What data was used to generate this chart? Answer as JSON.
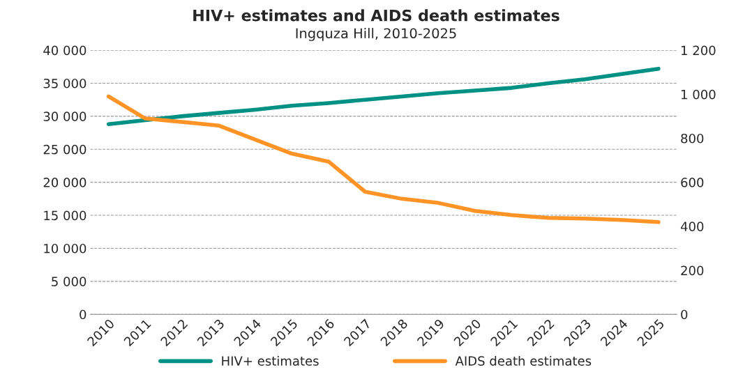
{
  "chart_data": {
    "type": "line",
    "title": "HIV+ estimates and AIDS death estimates",
    "subtitle": "Ingquza Hill, 2010-2025",
    "categories": [
      "2010",
      "2011",
      "2012",
      "2013",
      "2014",
      "2015",
      "2016",
      "2017",
      "2018",
      "2019",
      "2020",
      "2021",
      "2022",
      "2023",
      "2024",
      "2025"
    ],
    "series": [
      {
        "name": "HIV+ estimates",
        "color": "#009185",
        "values": [
          28800,
          29400,
          30000,
          30500,
          31000,
          31600,
          32000,
          32500,
          33000,
          33500,
          33900,
          34300,
          35000,
          35600,
          36400,
          37200
        ]
      },
      {
        "name": "AIDS death estimates",
        "color": "#ff9326",
        "axis": "y2",
        "values": [
          990,
          890,
          874,
          858,
          794,
          730,
          694,
          557,
          525,
          506,
          470,
          451,
          438,
          435,
          429,
          419
        ]
      }
    ],
    "ylim": [
      0,
      40000
    ],
    "yticks": [
      {
        "value": 0,
        "label": "0"
      },
      {
        "value": 5000,
        "label": "5 000"
      },
      {
        "value": 10000,
        "label": "10 000"
      },
      {
        "value": 15000,
        "label": "15 000"
      },
      {
        "value": 20000,
        "label": "20 000"
      },
      {
        "value": 25000,
        "label": "25 000"
      },
      {
        "value": 30000,
        "label": "30 000"
      },
      {
        "value": 35000,
        "label": "35 000"
      },
      {
        "value": 40000,
        "label": "40 000"
      }
    ],
    "y2lim": [
      0,
      1200
    ],
    "y2ticks": [
      {
        "value": 0,
        "label": "0"
      },
      {
        "value": 200,
        "label": "200"
      },
      {
        "value": 400,
        "label": "400"
      },
      {
        "value": 600,
        "label": "600"
      },
      {
        "value": 800,
        "label": "800"
      },
      {
        "value": 1000,
        "label": "1 000"
      },
      {
        "value": 1200,
        "label": "1 200"
      }
    ],
    "grid": "y",
    "legend": "bottom",
    "marker": "none",
    "line_style": "solid"
  }
}
